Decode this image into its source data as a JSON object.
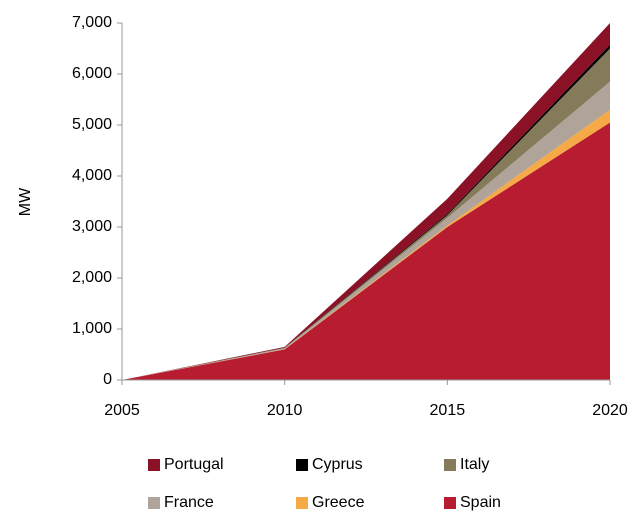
{
  "chart_data": {
    "type": "stacked_area",
    "y_label": "MW",
    "x": [
      2005,
      2010,
      2015,
      2020
    ],
    "series": [
      {
        "name": "Spain",
        "color": "#b81c30",
        "values": [
          0,
          600,
          3000,
          5050
        ]
      },
      {
        "name": "Greece",
        "color": "#f5a947",
        "values": [
          0,
          5,
          30,
          250
        ]
      },
      {
        "name": "France",
        "color": "#b0a49a",
        "values": [
          0,
          20,
          150,
          550
        ]
      },
      {
        "name": "Italy",
        "color": "#857b5a",
        "values": [
          0,
          5,
          50,
          650
        ]
      },
      {
        "name": "Cyprus",
        "color": "#000000",
        "values": [
          0,
          5,
          25,
          75
        ]
      },
      {
        "name": "Portugal",
        "color": "#8b1226",
        "values": [
          0,
          15,
          300,
          425
        ]
      }
    ],
    "legend_order": [
      5,
      4,
      3,
      2,
      1,
      0
    ],
    "xlim": [
      2005,
      2020
    ],
    "xticks": [
      2005,
      2010,
      2015,
      2020
    ],
    "ylim": [
      0,
      7000
    ],
    "yticks": [
      0,
      {
        "value": 1000,
        "label": "1,000"
      },
      {
        "value": 2000,
        "label": "2,000"
      },
      {
        "value": 3000,
        "label": "3,000"
      },
      {
        "value": 4000,
        "label": "4,000"
      },
      {
        "value": 5000,
        "label": "5,000"
      },
      {
        "value": 6000,
        "label": "6,000"
      },
      {
        "value": 7000,
        "label": "7,000"
      }
    ],
    "grid": false
  }
}
